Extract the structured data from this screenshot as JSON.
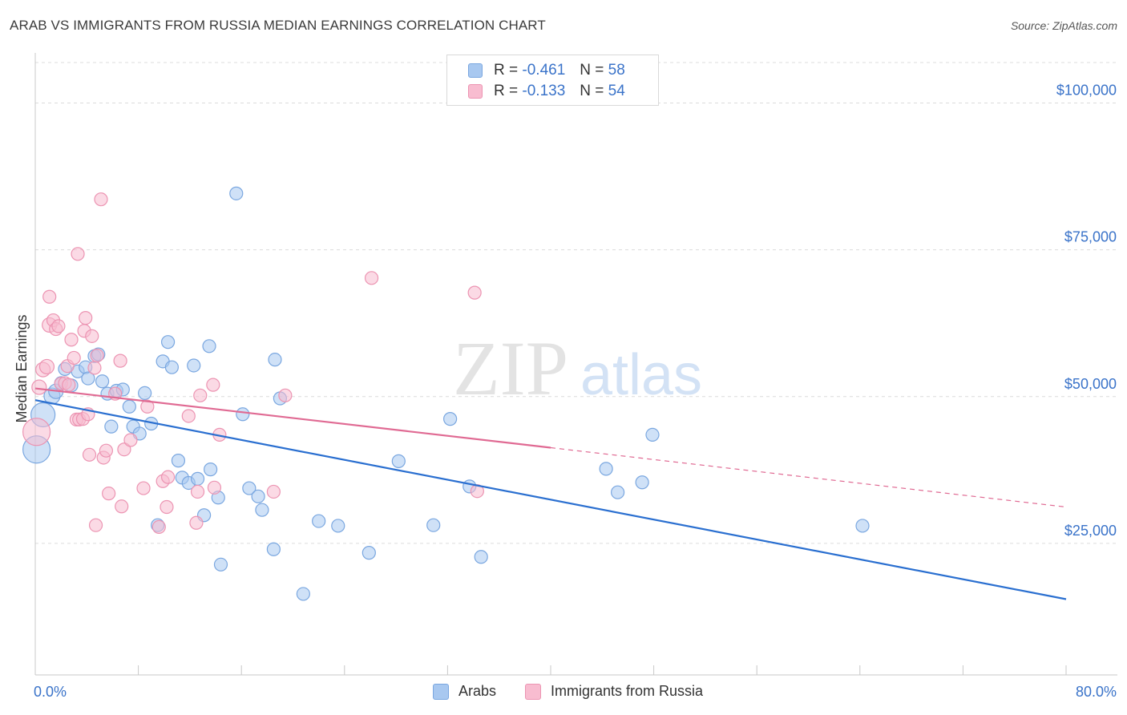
{
  "title": "ARAB VS IMMIGRANTS FROM RUSSIA MEDIAN EARNINGS CORRELATION CHART",
  "source": "Source: ZipAtlas.com",
  "watermark": {
    "zip": "ZIP",
    "atlas": "atlas"
  },
  "legend_top": {
    "rows": [
      {
        "r_label": "R =",
        "r_value": "-0.461",
        "n_label": "N =",
        "n_value": "58",
        "color": "#a8c8f0",
        "stroke": "#7aa7e0"
      },
      {
        "r_label": "R =",
        "r_value": "-0.133",
        "n_label": "N =",
        "n_value": "54",
        "color": "#f8bcd0",
        "stroke": "#ec94b2"
      }
    ]
  },
  "legend_bottom": [
    {
      "label": "Arabs",
      "color": "#a8c8f0",
      "stroke": "#7aa7e0"
    },
    {
      "label": "Immigrants from Russia",
      "color": "#f8bcd0",
      "stroke": "#ec94b2"
    }
  ],
  "x_axis": {
    "min_label": "0.0%",
    "max_label": "80.0%"
  },
  "chart_data": {
    "type": "scatter",
    "title": "ARAB VS IMMIGRANTS FROM RUSSIA MEDIAN EARNINGS CORRELATION CHART",
    "xlabel": "",
    "ylabel": "Median Earnings",
    "xlim": [
      0,
      80
    ],
    "ylim": [
      2600,
      106900
    ],
    "x_unit": "%",
    "y_ticks": [
      {
        "value": 25000,
        "label": "$25,000"
      },
      {
        "value": 50000,
        "label": "$50,000"
      },
      {
        "value": 75000,
        "label": "$75,000"
      },
      {
        "value": 100000,
        "label": "$100,000"
      }
    ],
    "grid": true,
    "legend_position": "top-center",
    "series": [
      {
        "name": "Arabs",
        "color": "#a8c8f0",
        "stroke": "#7aa7e0",
        "line_color": "#2a6fd0",
        "trend": {
          "x0": 0,
          "y0": 49400,
          "x1": 80,
          "y1": 15500,
          "solid_to": 80
        },
        "points": [
          [
            0.1,
            41000,
            30
          ],
          [
            0.6,
            46900,
            26
          ],
          [
            1.3,
            50100,
            16
          ],
          [
            1.6,
            50900,
            14
          ],
          [
            2.0,
            52300,
            12
          ],
          [
            2.3,
            54700,
            12
          ],
          [
            2.8,
            51900,
            12
          ],
          [
            3.3,
            54300,
            12
          ],
          [
            3.9,
            55000,
            12
          ],
          [
            4.1,
            53100,
            12
          ],
          [
            4.6,
            56900,
            12
          ],
          [
            4.9,
            57200,
            12
          ],
          [
            5.2,
            52600,
            12
          ],
          [
            5.6,
            50500,
            12
          ],
          [
            5.9,
            44900,
            12
          ],
          [
            6.3,
            51000,
            12
          ],
          [
            6.8,
            51200,
            12
          ],
          [
            7.3,
            48300,
            12
          ],
          [
            7.6,
            44900,
            12
          ],
          [
            8.1,
            43700,
            12
          ],
          [
            8.5,
            50600,
            12
          ],
          [
            9.0,
            45400,
            12
          ],
          [
            9.5,
            28100,
            12
          ],
          [
            9.9,
            56000,
            12
          ],
          [
            10.3,
            59300,
            12
          ],
          [
            10.6,
            55000,
            12
          ],
          [
            11.1,
            39100,
            12
          ],
          [
            11.4,
            36200,
            12
          ],
          [
            11.9,
            35300,
            12
          ],
          [
            12.3,
            55300,
            12
          ],
          [
            12.6,
            36000,
            12
          ],
          [
            13.1,
            29800,
            12
          ],
          [
            13.5,
            58600,
            12
          ],
          [
            13.6,
            37600,
            12
          ],
          [
            14.2,
            32800,
            12
          ],
          [
            14.4,
            21400,
            12
          ],
          [
            15.6,
            84600,
            12
          ],
          [
            16.1,
            47000,
            12
          ],
          [
            16.6,
            34400,
            12
          ],
          [
            17.3,
            33000,
            12
          ],
          [
            17.6,
            30700,
            12
          ],
          [
            18.5,
            24000,
            12
          ],
          [
            18.6,
            56300,
            12
          ],
          [
            19.0,
            49700,
            12
          ],
          [
            20.8,
            16400,
            12
          ],
          [
            22.0,
            28800,
            12
          ],
          [
            23.5,
            28000,
            12
          ],
          [
            25.9,
            23400,
            12
          ],
          [
            28.2,
            39000,
            12
          ],
          [
            30.9,
            28100,
            12
          ],
          [
            32.2,
            46200,
            12
          ],
          [
            33.7,
            34700,
            12
          ],
          [
            34.6,
            22700,
            12
          ],
          [
            44.3,
            37700,
            12
          ],
          [
            45.2,
            33700,
            12
          ],
          [
            47.1,
            35400,
            12
          ],
          [
            47.9,
            43500,
            12
          ],
          [
            64.2,
            28000,
            12
          ]
        ]
      },
      {
        "name": "Immigrants from Russia",
        "color": "#f8bcd0",
        "stroke": "#ec94b2",
        "line_color": "#e06a93",
        "trend": {
          "x0": 0,
          "y0": 51400,
          "x1": 80,
          "y1": 31200,
          "solid_to": 40
        },
        "points": [
          [
            0.1,
            44000,
            30
          ],
          [
            0.3,
            51600,
            14
          ],
          [
            0.6,
            54600,
            14
          ],
          [
            0.9,
            55100,
            14
          ],
          [
            1.1,
            62200,
            14
          ],
          [
            1.1,
            67000,
            12
          ],
          [
            1.4,
            63000,
            12
          ],
          [
            1.6,
            61500,
            12
          ],
          [
            1.8,
            62000,
            12
          ],
          [
            2.0,
            52200,
            12
          ],
          [
            2.3,
            52300,
            12
          ],
          [
            2.5,
            55200,
            12
          ],
          [
            2.6,
            52000,
            12
          ],
          [
            2.8,
            59700,
            12
          ],
          [
            3.0,
            56600,
            12
          ],
          [
            3.2,
            46100,
            12
          ],
          [
            3.3,
            74300,
            12
          ],
          [
            3.4,
            46100,
            12
          ],
          [
            3.7,
            46200,
            12
          ],
          [
            3.8,
            61200,
            12
          ],
          [
            3.9,
            63400,
            12
          ],
          [
            4.1,
            47000,
            12
          ],
          [
            4.2,
            40100,
            12
          ],
          [
            4.4,
            60300,
            12
          ],
          [
            4.6,
            54900,
            12
          ],
          [
            4.7,
            28100,
            12
          ],
          [
            4.8,
            57000,
            12
          ],
          [
            5.1,
            83600,
            12
          ],
          [
            5.3,
            39600,
            12
          ],
          [
            5.5,
            40800,
            12
          ],
          [
            5.7,
            33500,
            12
          ],
          [
            6.2,
            50500,
            12
          ],
          [
            6.6,
            56100,
            12
          ],
          [
            6.7,
            31300,
            12
          ],
          [
            6.9,
            41000,
            12
          ],
          [
            7.4,
            42600,
            12
          ],
          [
            8.4,
            34400,
            12
          ],
          [
            8.7,
            48300,
            12
          ],
          [
            9.6,
            27800,
            12
          ],
          [
            9.9,
            35600,
            12
          ],
          [
            10.2,
            31200,
            12
          ],
          [
            10.3,
            36300,
            12
          ],
          [
            11.9,
            46700,
            12
          ],
          [
            12.5,
            28500,
            12
          ],
          [
            12.6,
            33800,
            12
          ],
          [
            12.8,
            50200,
            12
          ],
          [
            13.8,
            52000,
            12
          ],
          [
            13.9,
            34500,
            12
          ],
          [
            14.3,
            43500,
            12
          ],
          [
            18.5,
            33800,
            12
          ],
          [
            19.4,
            50200,
            12
          ],
          [
            26.1,
            70200,
            12
          ],
          [
            34.1,
            67700,
            12
          ],
          [
            34.3,
            33900,
            12
          ]
        ]
      }
    ]
  }
}
